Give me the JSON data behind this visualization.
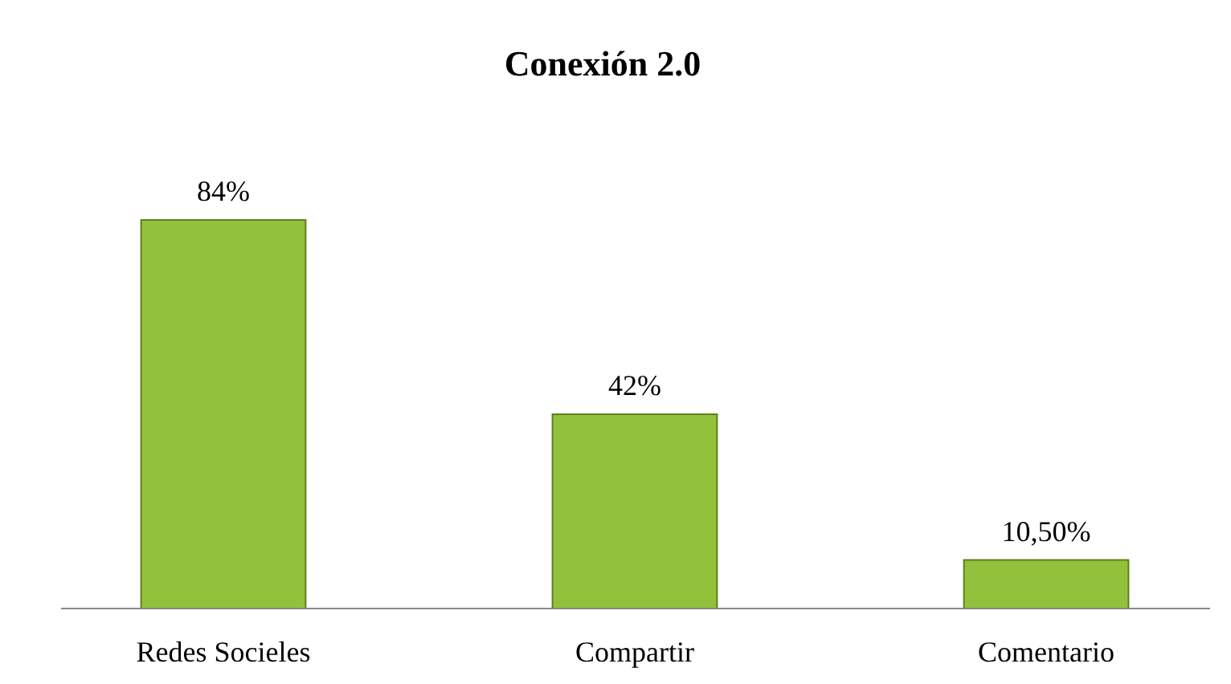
{
  "chart_data": {
    "type": "bar",
    "title": "Conexión 2.0",
    "categories": [
      "Redes Socieles",
      "Compartir",
      "Comentario"
    ],
    "values": [
      84,
      42,
      10.5
    ],
    "value_labels": [
      "84%",
      "42%",
      "10,50%"
    ],
    "color": "#92c13b"
  }
}
